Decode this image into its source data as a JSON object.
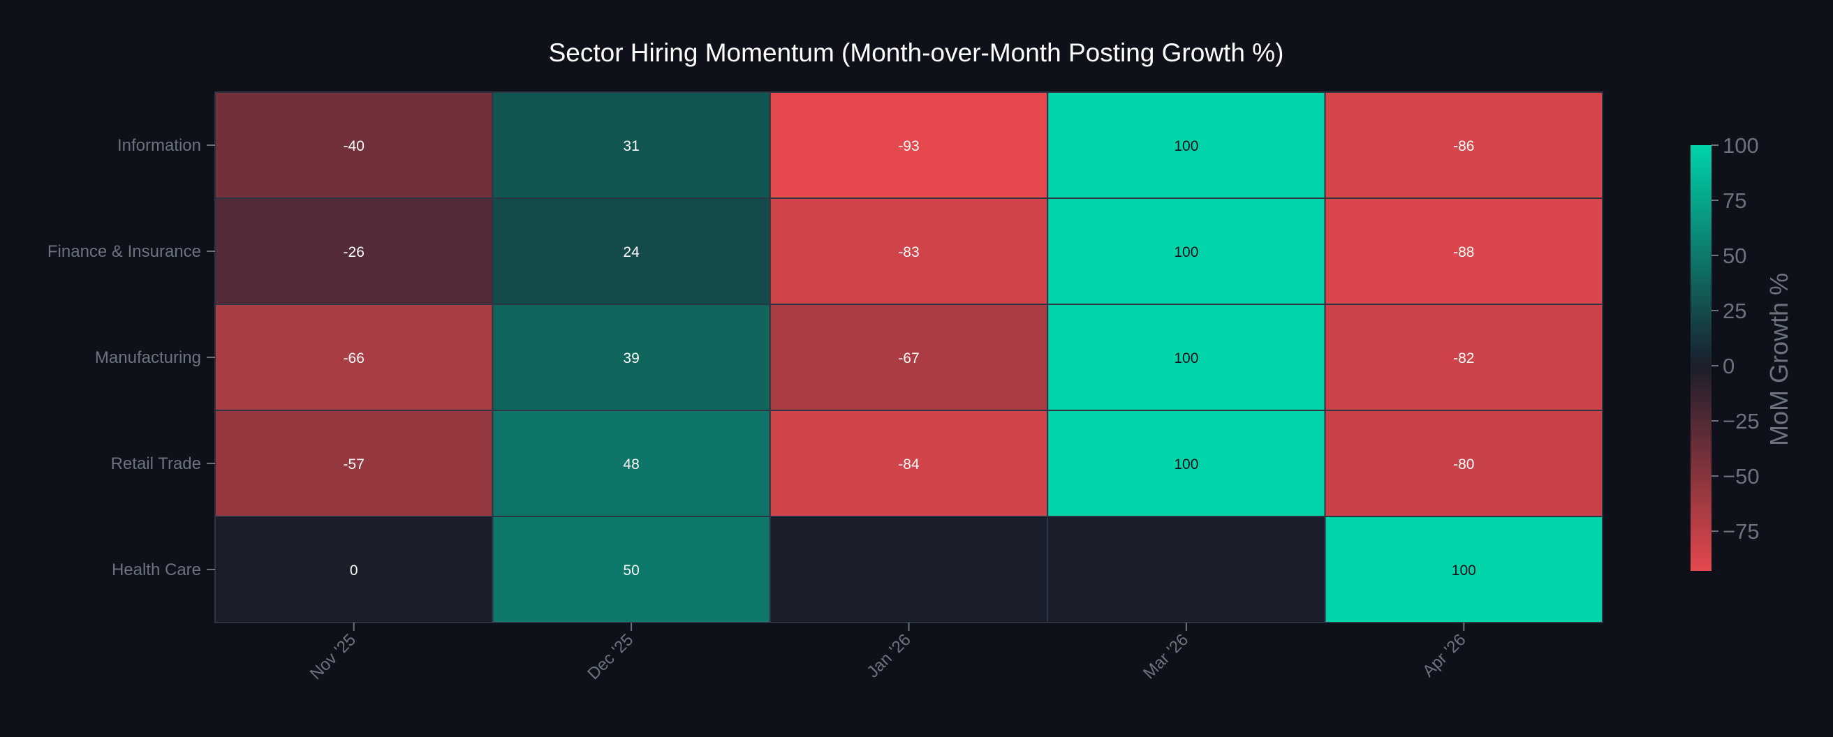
{
  "chart_data": {
    "type": "heatmap",
    "title": "Sector Hiring Momentum (Month-over-Month Posting Growth %)",
    "x_categories": [
      "Nov '25",
      "Dec '25",
      "Jan '26",
      "Mar '26",
      "Apr '26"
    ],
    "y_categories": [
      "Information",
      "Finance & Insurance",
      "Manufacturing",
      "Retail Trade",
      "Health Care"
    ],
    "values": [
      [
        -40,
        31,
        -93,
        100,
        -86
      ],
      [
        -26,
        24,
        -83,
        100,
        -88
      ],
      [
        -66,
        39,
        -67,
        100,
        -82
      ],
      [
        -57,
        48,
        -84,
        100,
        -80
      ],
      [
        0,
        50,
        null,
        null,
        100
      ]
    ],
    "colorbar": {
      "label": "MoM Growth %",
      "range": [
        -93,
        100
      ],
      "ticks": [
        100,
        75,
        50,
        25,
        0,
        -25,
        -50,
        -75
      ],
      "tick_labels": [
        "100",
        "75",
        "50",
        "25",
        "0",
        "−25",
        "−50",
        "−75"
      ]
    },
    "colors": {
      "negative": "#e5484d",
      "zero": "#1a1e2b",
      "positive": "#00d4aa",
      "background": "#0e111a",
      "grid": "#2e3542",
      "title": "#ffffff",
      "tick_text": "#6b7280"
    },
    "colorscale": "diverging red-dark-teal",
    "grid": false
  }
}
